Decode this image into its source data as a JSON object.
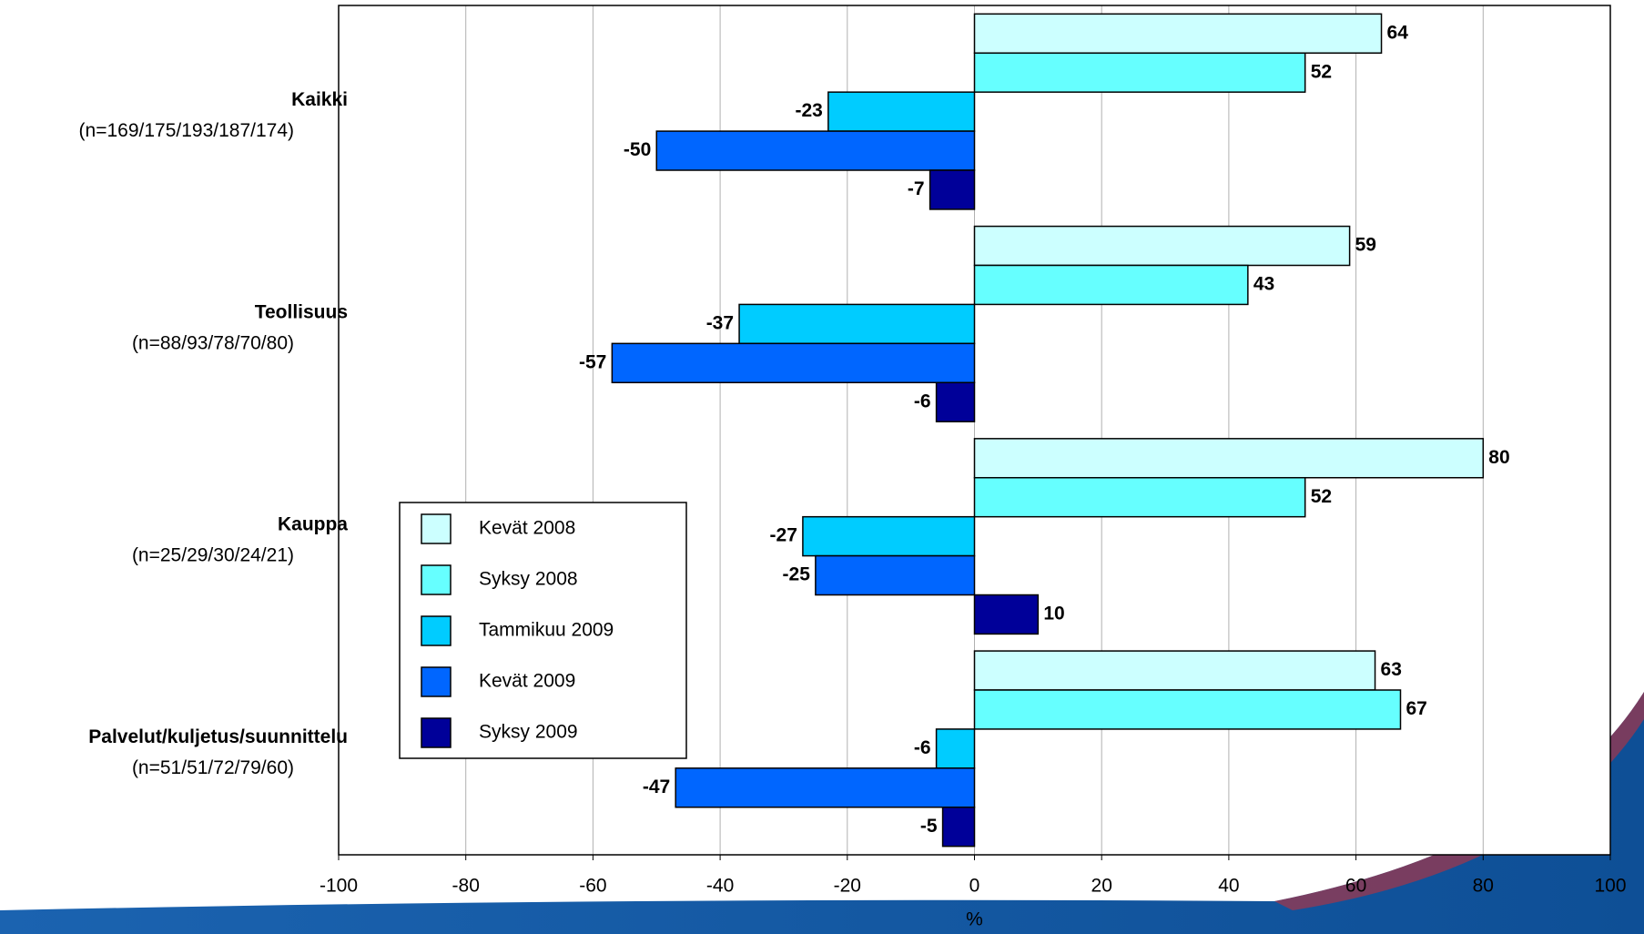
{
  "chart_data": {
    "type": "barh",
    "categories": [
      "Kaikki",
      "Teollisuus",
      "Kauppa",
      "Palvelut/kuljetus/suunnittelu"
    ],
    "category_subtitles": [
      "(n=169/175/193/187/174)",
      "(n=88/93/78/70/80)",
      "(n=25/29/30/24/21)",
      "(n=51/51/72/79/60)"
    ],
    "series": [
      {
        "name": "Kevät 2008",
        "color": "#ccffff",
        "values": [
          64,
          59,
          80,
          63
        ]
      },
      {
        "name": "Syksy 2008",
        "color": "#66ffff",
        "values": [
          52,
          43,
          52,
          67
        ]
      },
      {
        "name": "Tammikuu 2009",
        "color": "#00ccff",
        "values": [
          -23,
          -37,
          -27,
          -6
        ]
      },
      {
        "name": "Kevät 2009",
        "color": "#0066ff",
        "values": [
          -50,
          -57,
          -25,
          -47
        ]
      },
      {
        "name": "Syksy 2009",
        "color": "#000099",
        "values": [
          -7,
          -6,
          10,
          -5
        ]
      }
    ],
    "xlabel": "%",
    "xlim": [
      -100,
      100
    ],
    "xticks": [
      -100,
      -80,
      -60,
      -40,
      -20,
      0,
      20,
      40,
      60,
      80,
      100
    ],
    "grid": true,
    "legend": "lower-left"
  }
}
